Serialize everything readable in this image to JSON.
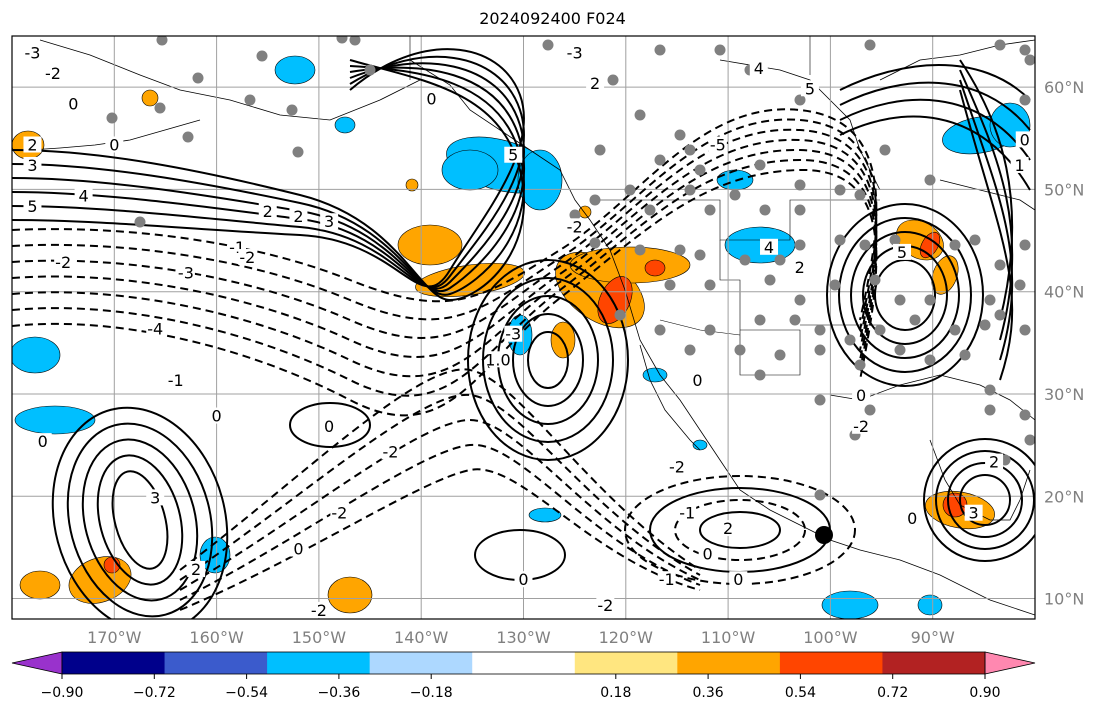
{
  "title": "2024092400 F024",
  "map": {
    "lon_ticks": [
      "170°W",
      "160°W",
      "150°W",
      "140°W",
      "130°W",
      "120°W",
      "110°W",
      "100°W",
      "90°W"
    ],
    "lat_ticks": [
      "60°N",
      "50°N",
      "40°N",
      "30°N",
      "20°N",
      "10°N"
    ],
    "lon_values": [
      -170,
      -160,
      -150,
      -140,
      -130,
      -120,
      -110,
      -100,
      -90
    ],
    "lat_values": [
      60,
      50,
      40,
      30,
      20,
      10
    ],
    "lon_range": [
      -180,
      -80
    ],
    "lat_range": [
      8,
      65
    ],
    "grid": true,
    "colors": {
      "positive_fill": "#ffa500",
      "positive_strong": "#ff4500",
      "negative_fill": "#00bfff",
      "station_dot": "#808080",
      "contour": "#000000",
      "grid": "#a0a0a0"
    },
    "contour_labels": [
      {
        "text": "-3",
        "lon": -178,
        "lat": 63
      },
      {
        "text": "-2",
        "lon": -176,
        "lat": 61
      },
      {
        "text": "0",
        "lon": -174,
        "lat": 58
      },
      {
        "text": "0",
        "lon": -170,
        "lat": 54
      },
      {
        "text": "2",
        "lon": -178,
        "lat": 54
      },
      {
        "text": "3",
        "lon": -178,
        "lat": 52
      },
      {
        "text": "4",
        "lon": -173,
        "lat": 49
      },
      {
        "text": "5",
        "lon": -178,
        "lat": 48
      },
      {
        "text": "2",
        "lon": -155,
        "lat": 47.5
      },
      {
        "text": "2",
        "lon": -152,
        "lat": 47
      },
      {
        "text": "3",
        "lon": -149,
        "lat": 46.5
      },
      {
        "text": "-1",
        "lon": -158,
        "lat": 44
      },
      {
        "text": "-2",
        "lon": -157,
        "lat": 43
      },
      {
        "text": "-2",
        "lon": -175,
        "lat": 42.5
      },
      {
        "text": "-3",
        "lon": -163,
        "lat": 41.5
      },
      {
        "text": "-4",
        "lon": -166,
        "lat": 36
      },
      {
        "text": "-1",
        "lon": -164,
        "lat": 31
      },
      {
        "text": "0",
        "lon": -160,
        "lat": 27.5
      },
      {
        "text": "0",
        "lon": -177,
        "lat": 25
      },
      {
        "text": "0",
        "lon": -149,
        "lat": 26.5
      },
      {
        "text": "3",
        "lon": -166,
        "lat": 19.5
      },
      {
        "text": "2",
        "lon": -162,
        "lat": 12.5
      },
      {
        "text": "-2",
        "lon": -148,
        "lat": 18
      },
      {
        "text": "0",
        "lon": -152,
        "lat": 14.5
      },
      {
        "text": "0",
        "lon": -130,
        "lat": 11.5
      },
      {
        "text": "-2",
        "lon": -143,
        "lat": 24
      },
      {
        "text": "-2",
        "lon": -150,
        "lat": 8.5
      },
      {
        "text": "0",
        "lon": -139,
        "lat": 58.5
      },
      {
        "text": "-3",
        "lon": -125,
        "lat": 63
      },
      {
        "text": "2",
        "lon": -123,
        "lat": 60
      },
      {
        "text": "5",
        "lon": -131,
        "lat": 53
      },
      {
        "text": "-3",
        "lon": -131,
        "lat": 35.5
      },
      {
        "text": "1.0",
        "lon": -132.5,
        "lat": 33
      },
      {
        "text": "0",
        "lon": -113,
        "lat": 31
      },
      {
        "text": "-5",
        "lon": -111,
        "lat": 54
      },
      {
        "text": "4",
        "lon": -107,
        "lat": 61.5
      },
      {
        "text": "5",
        "lon": -102,
        "lat": 59.5
      },
      {
        "text": "4",
        "lon": -106,
        "lat": 44
      },
      {
        "text": "2",
        "lon": -103,
        "lat": 42
      },
      {
        "text": "5",
        "lon": -93,
        "lat": 43.5
      },
      {
        "text": "0",
        "lon": -97,
        "lat": 29.5
      },
      {
        "text": "-2",
        "lon": -97,
        "lat": 26.5
      },
      {
        "text": "-2",
        "lon": -115,
        "lat": 22.5
      },
      {
        "text": "-1",
        "lon": -114,
        "lat": 18
      },
      {
        "text": "2",
        "lon": -110,
        "lat": 16.5
      },
      {
        "text": "0",
        "lon": -112,
        "lat": 14
      },
      {
        "text": "-1",
        "lon": -116,
        "lat": 11.5
      },
      {
        "text": "0",
        "lon": -109,
        "lat": 11.5
      },
      {
        "text": "-2",
        "lon": -122,
        "lat": 9
      },
      {
        "text": "3",
        "lon": -86,
        "lat": 18
      },
      {
        "text": "2",
        "lon": -84,
        "lat": 23
      },
      {
        "text": "0",
        "lon": -92,
        "lat": 17.5
      },
      {
        "text": "1",
        "lon": -81.5,
        "lat": 52
      },
      {
        "text": "0",
        "lon": -81,
        "lat": 54.5
      },
      {
        "text": "-2",
        "lon": -125,
        "lat": 46
      }
    ]
  },
  "colorbar": {
    "ticks": [
      "−0.90",
      "−0.72",
      "−0.54",
      "−0.36",
      "−0.18",
      "0.18",
      "0.36",
      "0.54",
      "0.72",
      "0.90"
    ],
    "boundaries": [
      -0.9,
      -0.72,
      -0.54,
      -0.36,
      -0.18,
      0.18,
      0.36,
      0.54,
      0.72,
      0.9
    ],
    "colors": [
      "#9932cc",
      "#00008b",
      "#3b5bcc",
      "#00bfff",
      "#add8ff",
      "#ffffff",
      "#ffe680",
      "#ffa500",
      "#ff4500",
      "#b22222",
      "#ff88b0"
    ]
  }
}
